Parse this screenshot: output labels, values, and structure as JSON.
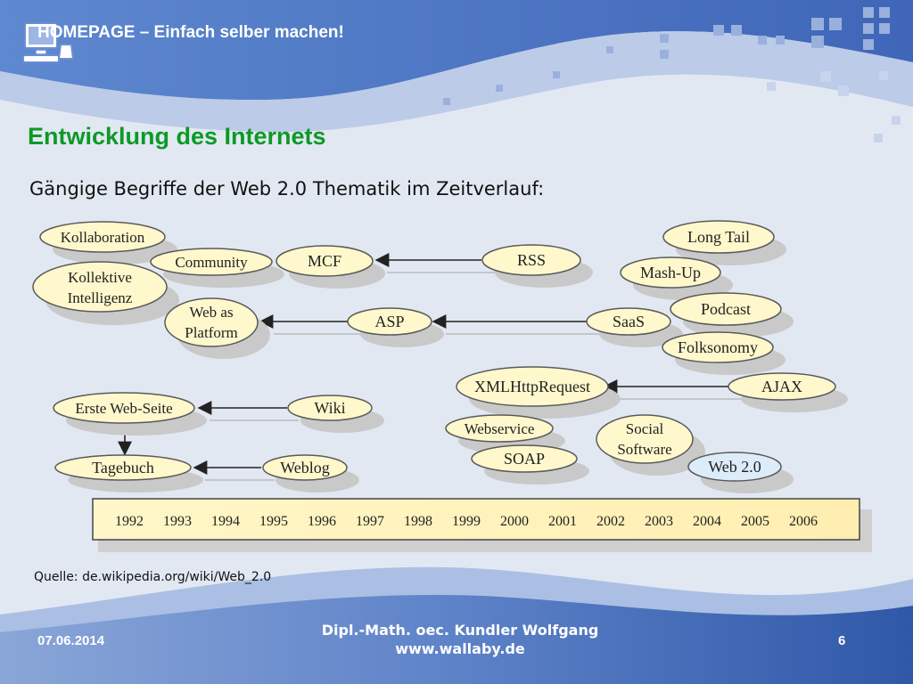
{
  "header": {
    "title": "HOMEPAGE – Einfach selber machen!"
  },
  "slide": {
    "title": "Entwicklung des Internets",
    "subtitle": "Gängige Begriffe der Web 2.0 Thematik im Zeitverlauf:",
    "source": "Quelle: de.wikipedia.org/wiki/Web_2.0"
  },
  "diagram": {
    "nodes": {
      "kollaboration": "Kollaboration",
      "community": "Community",
      "mcf": "MCF",
      "rss": "RSS",
      "kollektive_1": "Kollektive",
      "kollektive_2": "Intelligenz",
      "web_as_1": "Web as",
      "web_as_2": "Platform",
      "asp": "ASP",
      "saas": "SaaS",
      "long_tail": "Long Tail",
      "mash_up": "Mash-Up",
      "podcast": "Podcast",
      "folksonomy": "Folksonomy",
      "xmlhttprequest": "XMLHttpRequest",
      "ajax": "AJAX",
      "erste_web_seite": "Erste Web-Seite",
      "wiki": "Wiki",
      "tagebuch": "Tagebuch",
      "weblog": "Weblog",
      "webservice": "Webservice",
      "soap": "SOAP",
      "social_1": "Social",
      "social_2": "Software",
      "web20": "Web 2.0"
    },
    "timeline_years": [
      "1992",
      "1993",
      "1994",
      "1995",
      "1996",
      "1997",
      "1998",
      "1999",
      "2000",
      "2001",
      "2002",
      "2003",
      "2004",
      "2005",
      "2006"
    ]
  },
  "footer": {
    "date": "07.06.2014",
    "author": "Dipl.-Math. oec. Kundler Wolfgang",
    "website": "www.wallaby.de",
    "page": "6"
  },
  "colors": {
    "title_green": "#0b9a26",
    "node_fill": "#fff8cc",
    "node_highlight": "#dcecf8",
    "header_blue": "#4a74c4"
  }
}
